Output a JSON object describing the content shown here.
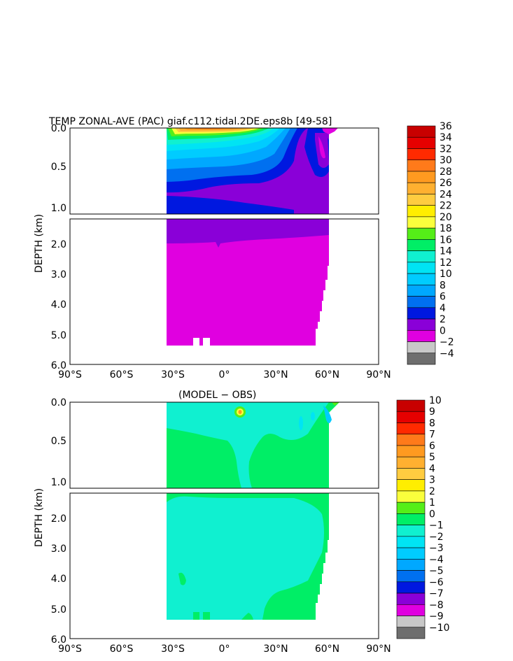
{
  "chart_data": [
    {
      "type": "heatmap",
      "title": "TEMP ZONAL-AVE (PAC) giaf.c112.tidal.2DE.eps8b [49-58]",
      "ylabel": "DEPTH (km)",
      "xticks": [
        "90°S",
        "60°S",
        "30°S",
        "0°",
        "30°N",
        "60°N",
        "90°N"
      ],
      "xlim": [
        -90,
        90
      ],
      "yticks_upper": [
        "0.0",
        "0.5",
        "1.0"
      ],
      "yticks_lower": [
        "2.0",
        "3.0",
        "4.0",
        "5.0",
        "6.0"
      ],
      "ylim": [
        0,
        6
      ],
      "colorbar": {
        "labels": [
          "36",
          "34",
          "32",
          "30",
          "28",
          "26",
          "24",
          "22",
          "20",
          "18",
          "16",
          "14",
          "12",
          "10",
          "8",
          "6",
          "4",
          "2",
          "0",
          "−2",
          "−4"
        ],
        "colors": [
          "#c80000",
          "#e60000",
          "#ff2a00",
          "#ff7a1a",
          "#ff9a20",
          "#ffb030",
          "#ffcc40",
          "#ffee00",
          "#faff3c",
          "#55ee18",
          "#00ee66",
          "#10f0d0",
          "#00e4f4",
          "#00ccff",
          "#00a8ff",
          "#0070f0",
          "#0018e0",
          "#8a00d8",
          "#e000e0",
          "#c8c8c8",
          "#6e6e6e"
        ]
      }
    },
    {
      "type": "heatmap",
      "title": "(MODEL − OBS)",
      "ylabel": "DEPTH (km)",
      "xticks": [
        "90°S",
        "60°S",
        "30°S",
        "0°",
        "30°N",
        "60°N",
        "90°N"
      ],
      "xlim": [
        -90,
        90
      ],
      "yticks_upper": [
        "0.0",
        "0.5",
        "1.0"
      ],
      "yticks_lower": [
        "2.0",
        "3.0",
        "4.0",
        "5.0",
        "6.0"
      ],
      "ylim": [
        0,
        6
      ],
      "colorbar": {
        "labels": [
          "10",
          "9",
          "8",
          "7",
          "6",
          "5",
          "4",
          "3",
          "2",
          "1",
          "0",
          "−1",
          "−2",
          "−3",
          "−4",
          "−5",
          "−6",
          "−7",
          "−8",
          "−9",
          "−10"
        ],
        "colors": [
          "#c80000",
          "#e60000",
          "#ff2a00",
          "#ff7a1a",
          "#ff9a20",
          "#ffb030",
          "#ffcc40",
          "#ffee00",
          "#faff3c",
          "#55ee18",
          "#00ee66",
          "#10f0d0",
          "#00e4f4",
          "#00ccff",
          "#00a8ff",
          "#0070f0",
          "#0018e0",
          "#8a00d8",
          "#e000e0",
          "#c8c8c8",
          "#6e6e6e"
        ]
      }
    }
  ]
}
